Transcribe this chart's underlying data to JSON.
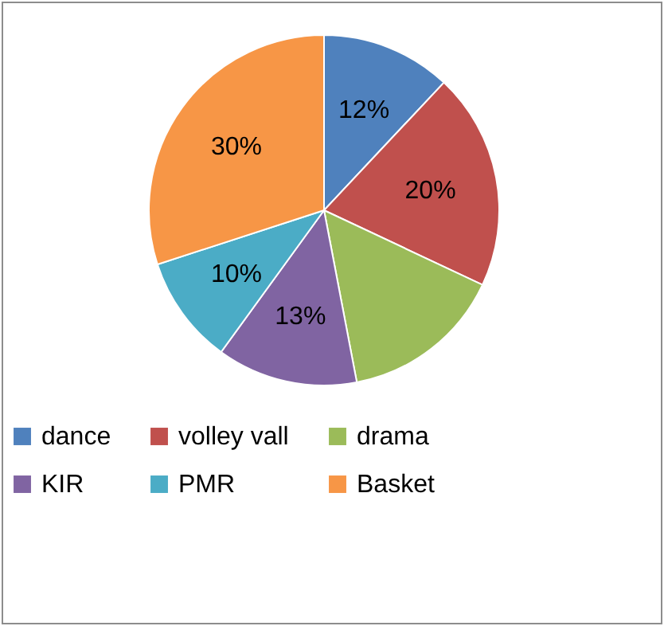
{
  "chart_data": {
    "type": "pie",
    "categories": [
      "dance",
      "volley vall",
      "drama",
      "KIR",
      "PMR",
      "Basket"
    ],
    "values": [
      12,
      20,
      15,
      13,
      10,
      30
    ],
    "value_labels": [
      "12%",
      "20%",
      null,
      "13%",
      "10%",
      "30%"
    ],
    "colors": [
      "#4f81bd",
      "#c0504d",
      "#9bbb59",
      "#8064a2",
      "#4bacc6",
      "#f79646"
    ],
    "legend": "bottom"
  }
}
